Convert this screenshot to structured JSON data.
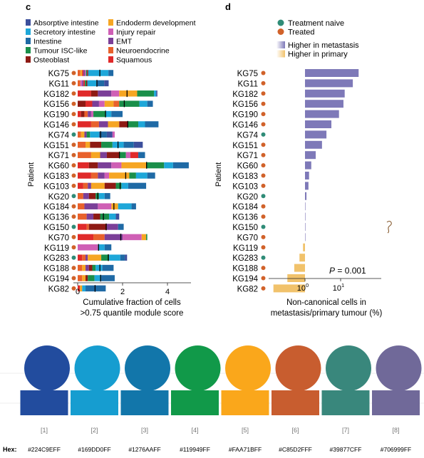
{
  "panel_c": {
    "letter": "c",
    "legend": [
      {
        "label": "Absorptive intestine",
        "color": "#3C4F9C"
      },
      {
        "label": "Secretory intestine",
        "color": "#1EA7D9"
      },
      {
        "label": "Intestine",
        "color": "#1F6AA5"
      },
      {
        "label": "Tumour ISC-like",
        "color": "#1A8F4A"
      },
      {
        "label": "Osteoblast",
        "color": "#8E1A14"
      },
      {
        "label": "Endoderm development",
        "color": "#F6A623"
      },
      {
        "label": "Injury repair",
        "color": "#CF5FB5"
      },
      {
        "label": "EMT",
        "color": "#7B3F98"
      },
      {
        "label": "Neuroendocrine",
        "color": "#E8612C"
      },
      {
        "label": "Squamous",
        "color": "#E02A2A"
      }
    ],
    "ylabel": "Patient",
    "xlabel_line1": "Cumulative fraction of cells",
    "xlabel_line2": ">0.75 quantile module score",
    "xticks": [
      "0",
      "2",
      "4"
    ]
  },
  "panel_d": {
    "letter": "d",
    "legend_dots": [
      {
        "label": "Treatment naive",
        "color": "#2F8C77"
      },
      {
        "label": "Treated",
        "color": "#D1622A"
      }
    ],
    "legend_bars": [
      {
        "label": "Higher in metastasis",
        "color": "#7E79B8"
      },
      {
        "label": "Higher in primary",
        "color": "#F1C26B"
      }
    ],
    "ylabel": "Patient",
    "xlabel_line1": "Non-canonical cells in",
    "xlabel_line2": "metastasis/primary tumour (%)",
    "xtick_1": "10",
    "xtick_1_exp": "0",
    "xtick_2": "10",
    "xtick_2_exp": "1",
    "pvalue_label": "P",
    "pvalue_text": " = 0.001"
  },
  "chart_data": [
    {
      "type": "bar",
      "orientation": "horizontal",
      "stacked": true,
      "title": "",
      "xlabel": "Cumulative fraction of cells >0.75 quantile module score",
      "ylabel": "Patient",
      "xlim": [
        -0.2,
        5
      ],
      "categories": [
        "KG75",
        "KG11",
        "KG182",
        "KG156",
        "KG190",
        "KG146",
        "KG74",
        "KG151",
        "KG71",
        "KG60",
        "KG183",
        "KG103",
        "KG20",
        "KG184",
        "KG136",
        "KG150",
        "KG70",
        "KG119",
        "KG283",
        "KG188",
        "KG194",
        "KG82"
      ],
      "treatment": [
        "Treated",
        "Treated",
        "Treated",
        "Treated",
        "Treated",
        "Treated",
        "Treatment naive",
        "Treated",
        "Treated",
        "Treated",
        "Treated",
        "Treated",
        "Treatment naive",
        "Treated",
        "Treated",
        "Treatment naive",
        "Treated",
        "Treated",
        "Treatment naive",
        "Treated",
        "Treated",
        "Treated"
      ],
      "segments": [
        [
          [
            "#E8612C",
            0.12
          ],
          [
            "#F6A623",
            0.08
          ],
          [
            "#E02A2A",
            0.06
          ],
          [
            "#7B3F98",
            0.06
          ],
          [
            "#CF5FB5",
            0.05
          ],
          [
            "#1A8F4A",
            0.05
          ],
          [
            "#8E1A14",
            0.05
          ],
          [
            "#1EA7D9",
            0.9
          ],
          [
            "#1F6AA5",
            0.22
          ]
        ],
        [
          [
            "#E8612C",
            0.12
          ],
          [
            "#CF5FB5",
            0.08
          ],
          [
            "#7B3F98",
            0.06
          ],
          [
            "#E02A2A",
            0.06
          ],
          [
            "#1A8F4A",
            0.06
          ],
          [
            "#8E1A14",
            0.05
          ],
          [
            "#1EA7D9",
            0.4
          ],
          [
            "#1F6AA5",
            0.35
          ],
          [
            "#3C4F9C",
            0.2
          ]
        ],
        [
          [
            "#E02A2A",
            0.6
          ],
          [
            "#8E1A14",
            0.3
          ],
          [
            "#7B3F98",
            0.6
          ],
          [
            "#CF5FB5",
            0.35
          ],
          [
            "#F6A623",
            0.8
          ],
          [
            "#1A8F4A",
            0.75
          ],
          [
            "#1EA7D9",
            0.1
          ],
          [
            "#3C4F9C",
            0.05
          ]
        ],
        [
          [
            "#8E1A14",
            0.35
          ],
          [
            "#E02A2A",
            0.3
          ],
          [
            "#7B3F98",
            0.3
          ],
          [
            "#CF5FB5",
            0.25
          ],
          [
            "#F6A623",
            0.4
          ],
          [
            "#E8612C",
            0.25
          ],
          [
            "#1A8F4A",
            0.9
          ],
          [
            "#1EA7D9",
            0.35
          ],
          [
            "#1F6AA5",
            0.25
          ]
        ],
        [
          [
            "#E02A2A",
            0.15
          ],
          [
            "#8E1A14",
            0.15
          ],
          [
            "#E8612C",
            0.15
          ],
          [
            "#7B3F98",
            0.15
          ],
          [
            "#CF5FB5",
            0.1
          ],
          [
            "#1A8F4A",
            0.55
          ],
          [
            "#1EA7D9",
            0.25
          ],
          [
            "#1F6AA5",
            0.5
          ]
        ],
        [
          [
            "#E02A2A",
            0.6
          ],
          [
            "#E8612C",
            0.35
          ],
          [
            "#7B3F98",
            0.4
          ],
          [
            "#F6A623",
            0.5
          ],
          [
            "#8E1A14",
            0.4
          ],
          [
            "#1A8F4A",
            0.45
          ],
          [
            "#1EA7D9",
            0.3
          ],
          [
            "#1F6AA5",
            0.6
          ]
        ],
        [
          [
            "#E8612C",
            0.15
          ],
          [
            "#F6A623",
            0.15
          ],
          [
            "#7B3F98",
            0.1
          ],
          [
            "#1A8F4A",
            0.15
          ],
          [
            "#1EA7D9",
            0.4
          ],
          [
            "#1F6AA5",
            0.35
          ],
          [
            "#3C4F9C",
            0.25
          ],
          [
            "#CF5FB5",
            0.1
          ]
        ],
        [
          [
            "#E8612C",
            0.35
          ],
          [
            "#F6A623",
            0.2
          ],
          [
            "#8E1A14",
            0.5
          ],
          [
            "#1A8F4A",
            0.5
          ],
          [
            "#1EA7D9",
            0.5
          ],
          [
            "#1F6AA5",
            0.45
          ],
          [
            "#3C4F9C",
            0.4
          ]
        ],
        [
          [
            "#E8612C",
            0.6
          ],
          [
            "#F6A623",
            0.4
          ],
          [
            "#7B3F98",
            0.3
          ],
          [
            "#8E1A14",
            0.55
          ],
          [
            "#1A8F4A",
            0.3
          ],
          [
            "#CF5FB5",
            0.2
          ],
          [
            "#E02A2A",
            0.35
          ],
          [
            "#1F6AA5",
            0.3
          ]
        ],
        [
          [
            "#E02A2A",
            0.5
          ],
          [
            "#8E1A14",
            0.4
          ],
          [
            "#7B3F98",
            0.6
          ],
          [
            "#CF5FB5",
            0.45
          ],
          [
            "#F6A623",
            1.1
          ],
          [
            "#1A8F4A",
            0.8
          ],
          [
            "#1EA7D9",
            0.4
          ],
          [
            "#1F6AA5",
            0.7
          ]
        ],
        [
          [
            "#E02A2A",
            0.6
          ],
          [
            "#E8612C",
            0.3
          ],
          [
            "#7B3F98",
            0.3
          ],
          [
            "#CF5FB5",
            0.2
          ],
          [
            "#F6A623",
            0.9
          ],
          [
            "#1A8F4A",
            0.3
          ],
          [
            "#1EA7D9",
            0.5
          ],
          [
            "#1F6AA5",
            0.35
          ]
        ],
        [
          [
            "#E02A2A",
            0.25
          ],
          [
            "#E8612C",
            0.2
          ],
          [
            "#7B3F98",
            0.15
          ],
          [
            "#F6A623",
            0.6
          ],
          [
            "#8E1A14",
            0.5
          ],
          [
            "#1A8F4A",
            0.25
          ],
          [
            "#1EA7D9",
            0.3
          ],
          [
            "#1F6AA5",
            0.8
          ]
        ],
        [
          [
            "#E8612C",
            0.25
          ],
          [
            "#7B3F98",
            0.25
          ],
          [
            "#8E1A14",
            0.3
          ],
          [
            "#1A8F4A",
            0.15
          ],
          [
            "#1EA7D9",
            0.25
          ],
          [
            "#1F6AA5",
            0.25
          ]
        ],
        [
          [
            "#E8612C",
            0.3
          ],
          [
            "#7B3F98",
            0.6
          ],
          [
            "#CF5FB5",
            0.6
          ],
          [
            "#F6A623",
            0.3
          ],
          [
            "#1EA7D9",
            0.6
          ],
          [
            "#1F6AA5",
            0.2
          ]
        ],
        [
          [
            "#E8612C",
            0.4
          ],
          [
            "#7B3F98",
            0.3
          ],
          [
            "#8E1A14",
            0.3
          ],
          [
            "#1A8F4A",
            0.4
          ],
          [
            "#1EA7D9",
            0.3
          ],
          [
            "#3C4F9C",
            0.15
          ]
        ],
        [
          [
            "#E02A2A",
            0.4
          ],
          [
            "#E8612C",
            0.1
          ],
          [
            "#8E1A14",
            0.8
          ],
          [
            "#7B3F98",
            0.5
          ],
          [
            "#1F6AA5",
            0.25
          ]
        ],
        [
          [
            "#E02A2A",
            0.7
          ],
          [
            "#E8612C",
            0.5
          ],
          [
            "#7B3F98",
            0.8
          ],
          [
            "#CF5FB5",
            0.85
          ],
          [
            "#F6A623",
            0.2
          ],
          [
            "#1A8F4A",
            0.05
          ]
        ],
        [
          [
            "#CF5FB5",
            0.9
          ],
          [
            "#1EA7D9",
            0.3
          ],
          [
            "#1F6AA5",
            0.3
          ]
        ],
        [
          [
            "#E02A2A",
            0.2
          ],
          [
            "#E8612C",
            0.15
          ],
          [
            "#7B3F98",
            0.1
          ],
          [
            "#F6A623",
            0.6
          ],
          [
            "#1A8F4A",
            0.35
          ],
          [
            "#1EA7D9",
            0.5
          ],
          [
            "#1F6AA5",
            0.2
          ],
          [
            "#3C4F9C",
            0.1
          ]
        ],
        [
          [
            "#E8612C",
            0.2
          ],
          [
            "#F6A623",
            0.15
          ],
          [
            "#7B3F98",
            0.15
          ],
          [
            "#8E1A14",
            0.15
          ],
          [
            "#1A8F4A",
            0.15
          ],
          [
            "#1EA7D9",
            0.3
          ],
          [
            "#1F6AA5",
            0.5
          ]
        ],
        [
          [
            "#E8612C",
            0.2
          ],
          [
            "#F6A623",
            0.15
          ],
          [
            "#8E1A14",
            0.1
          ],
          [
            "#1A8F4A",
            0.3
          ],
          [
            "#1EA7D9",
            0.3
          ],
          [
            "#1F6AA5",
            0.6
          ]
        ],
        [
          [
            "#E02A2A",
            0.1
          ],
          [
            "#F6A623",
            0.1
          ],
          [
            "#1EA7D9",
            0.15
          ],
          [
            "#1F6AA5",
            0.9
          ]
        ]
      ]
    },
    {
      "type": "bar",
      "orientation": "horizontal",
      "title": "",
      "xlabel": "Non-canonical cells in metastasis/primary tumour (%)",
      "ylabel": "Patient",
      "x_scale": "log",
      "xlim": [
        0.1,
        40
      ],
      "categories": [
        "KG75",
        "KG11",
        "KG182",
        "KG156",
        "KG190",
        "KG146",
        "KG74",
        "KG151",
        "KG71",
        "KG60",
        "KG183",
        "KG103",
        "KG20",
        "KG184",
        "KG136",
        "KG150",
        "KG70",
        "KG119",
        "KG283",
        "KG188",
        "KG194",
        "KG82"
      ],
      "treatment": [
        "Treated",
        "Treated",
        "Treated",
        "Treated",
        "Treated",
        "Treated",
        "Treatment naive",
        "Treated",
        "Treated",
        "Treated",
        "Treated",
        "Treated",
        "Treatment naive",
        "Treated",
        "Treated",
        "Treatment naive",
        "Treated",
        "Treated",
        "Treatment naive",
        "Treated",
        "Treated",
        "Treated"
      ],
      "values": [
        32,
        22,
        13,
        12,
        9,
        5.5,
        4,
        3,
        2,
        1.5,
        1.3,
        1.25,
        1.1,
        1.0,
        1.0,
        1.0,
        1.0,
        0.88,
        0.7,
        0.5,
        0.32,
        0.13
      ],
      "series": [
        {
          "name": "Higher in metastasis",
          "color": "#7E79B8"
        },
        {
          "name": "Higher in primary",
          "color": "#F1C26B"
        }
      ],
      "annotation": "P = 0.001"
    }
  ],
  "swatches": {
    "row_label": "Hex:",
    "items": [
      {
        "index": "[1]",
        "hex": "#224C9EFF",
        "color": "#224C9E"
      },
      {
        "index": "[2]",
        "hex": "#169DD0FF",
        "color": "#169DD0"
      },
      {
        "index": "[3]",
        "hex": "#1276AAFF",
        "color": "#1276AA"
      },
      {
        "index": "[4]",
        "hex": "#119949FF",
        "color": "#119949"
      },
      {
        "index": "[5]",
        "hex": "#FAA71BFF",
        "color": "#FAA71B"
      },
      {
        "index": "[6]",
        "hex": "#C85D2FFF",
        "color": "#C85D2F"
      },
      {
        "index": "[7]",
        "hex": "#39877CFF",
        "color": "#39877C"
      },
      {
        "index": "[8]",
        "hex": "#706999FF",
        "color": "#706999"
      }
    ]
  }
}
